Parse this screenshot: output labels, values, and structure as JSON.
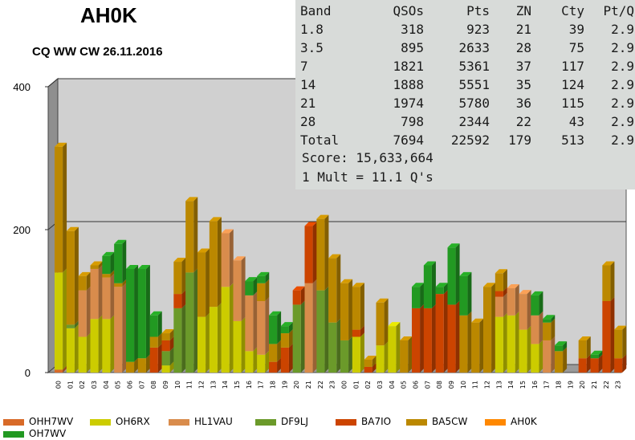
{
  "title": "AH0K",
  "subtitle": "CQ WW CW 26.11.2016",
  "stats": {
    "headers": [
      "Band",
      "QSOs",
      "Pts",
      "ZN",
      "Cty",
      "Pt/Q"
    ],
    "rows": [
      [
        "1.8",
        "318",
        "923",
        "21",
        "39",
        "2.9"
      ],
      [
        "3.5",
        "895",
        "2633",
        "28",
        "75",
        "2.9"
      ],
      [
        "7",
        "1821",
        "5361",
        "37",
        "117",
        "2.9"
      ],
      [
        "14",
        "1888",
        "5551",
        "35",
        "124",
        "2.9"
      ],
      [
        "21",
        "1974",
        "5780",
        "36",
        "115",
        "2.9"
      ],
      [
        "28",
        "798",
        "2344",
        "22",
        "43",
        "2.9"
      ]
    ],
    "total": [
      "Total",
      "7694",
      "22592",
      "179",
      "513",
      "2.9"
    ],
    "score": "Score: 15,633,664",
    "mult": "1 Mult = 11.1 Q's"
  },
  "chart_data": {
    "type": "bar",
    "stacked": true,
    "ylim": [
      0,
      400
    ],
    "y_ticks": [
      "0",
      "200",
      "400"
    ],
    "categories": [
      "00",
      "01",
      "02",
      "03",
      "04",
      "05",
      "06",
      "07",
      "08",
      "09",
      "10",
      "11",
      "12",
      "13",
      "14",
      "15",
      "16",
      "17",
      "18",
      "19",
      "20",
      "21",
      "22",
      "23",
      "00",
      "01",
      "02",
      "03",
      "04",
      "05",
      "06",
      "07",
      "08",
      "09",
      "10",
      "11",
      "12",
      "13",
      "14",
      "15",
      "16",
      "17",
      "18",
      "19",
      "20",
      "21",
      "22",
      "23"
    ],
    "series": [
      {
        "name": "OHH7WV",
        "color": "#d86a28",
        "values": [
          4,
          0,
          0,
          0,
          0,
          0,
          0,
          0,
          0,
          0,
          0,
          0,
          0,
          0,
          0,
          0,
          0,
          0,
          0,
          0,
          0,
          0,
          0,
          0,
          0,
          0,
          0,
          0,
          0,
          0,
          0,
          0,
          0,
          0,
          0,
          0,
          0,
          0,
          0,
          0,
          0,
          0,
          0,
          0,
          0,
          0,
          0,
          0
        ]
      },
      {
        "name": "OH6RX",
        "color": "#cccc00",
        "values": [
          136,
          62,
          50,
          75,
          75,
          0,
          0,
          0,
          0,
          10,
          0,
          0,
          78,
          92,
          120,
          72,
          30,
          25,
          0,
          0,
          0,
          0,
          0,
          0,
          0,
          50,
          0,
          38,
          65,
          0,
          0,
          0,
          0,
          0,
          0,
          0,
          0,
          78,
          80,
          60,
          40,
          0,
          0,
          0,
          0,
          0,
          0,
          0
        ]
      },
      {
        "name": "HL1VAU",
        "color": "#d98c4c",
        "values": [
          0,
          0,
          65,
          70,
          58,
          120,
          0,
          0,
          0,
          0,
          0,
          0,
          0,
          0,
          75,
          85,
          78,
          75,
          0,
          0,
          0,
          125,
          0,
          0,
          0,
          0,
          0,
          0,
          0,
          0,
          0,
          0,
          0,
          0,
          0,
          0,
          0,
          28,
          38,
          50,
          40,
          45,
          0,
          0,
          0,
          0,
          0,
          0
        ]
      },
      {
        "name": "DF9LJ",
        "color": "#6b9a2a",
        "values": [
          0,
          5,
          0,
          0,
          0,
          0,
          0,
          0,
          0,
          20,
          90,
          140,
          0,
          0,
          0,
          0,
          0,
          0,
          0,
          0,
          95,
          0,
          115,
          70,
          45,
          0,
          0,
          0,
          0,
          0,
          0,
          0,
          0,
          0,
          0,
          0,
          0,
          0,
          0,
          0,
          0,
          0,
          0,
          0,
          0,
          0,
          0,
          0
        ]
      },
      {
        "name": "BA7IO",
        "color": "#cc4400",
        "values": [
          0,
          0,
          0,
          0,
          0,
          0,
          0,
          0,
          35,
          15,
          20,
          0,
          0,
          0,
          0,
          0,
          0,
          0,
          15,
          35,
          20,
          80,
          0,
          0,
          0,
          10,
          8,
          0,
          0,
          0,
          90,
          90,
          110,
          95,
          0,
          0,
          0,
          8,
          0,
          0,
          0,
          0,
          0,
          0,
          20,
          20,
          100,
          20
        ]
      },
      {
        "name": "BA5CW",
        "color": "#bb8800",
        "values": [
          176,
          131,
          20,
          5,
          5,
          5,
          15,
          20,
          15,
          10,
          45,
          100,
          90,
          120,
          0,
          0,
          0,
          25,
          25,
          20,
          0,
          0,
          100,
          90,
          80,
          60,
          10,
          60,
          0,
          45,
          0,
          0,
          0,
          0,
          80,
          70,
          120,
          25,
          0,
          0,
          0,
          25,
          30,
          0,
          25,
          0,
          50,
          40
        ]
      },
      {
        "name": "AH0K",
        "color": "#ff8800",
        "values": [
          0,
          0,
          0,
          0,
          0,
          0,
          0,
          0,
          0,
          0,
          0,
          0,
          0,
          0,
          0,
          0,
          0,
          0,
          0,
          0,
          0,
          0,
          0,
          0,
          0,
          0,
          0,
          0,
          0,
          0,
          0,
          0,
          0,
          0,
          0,
          0,
          0,
          0,
          0,
          0,
          0,
          0,
          0,
          0,
          0,
          0,
          0,
          0
        ]
      },
      {
        "name": "OH7WV",
        "color": "#229922",
        "values": [
          0,
          0,
          0,
          0,
          25,
          55,
          130,
          125,
          30,
          0,
          0,
          0,
          0,
          0,
          0,
          0,
          20,
          10,
          40,
          10,
          0,
          0,
          0,
          0,
          0,
          0,
          0,
          0,
          0,
          0,
          30,
          60,
          10,
          80,
          55,
          0,
          0,
          0,
          0,
          0,
          28,
          5,
          8,
          0,
          0,
          5,
          0,
          0
        ]
      }
    ],
    "legend": {
      "position": "bottom"
    },
    "grid": true
  }
}
